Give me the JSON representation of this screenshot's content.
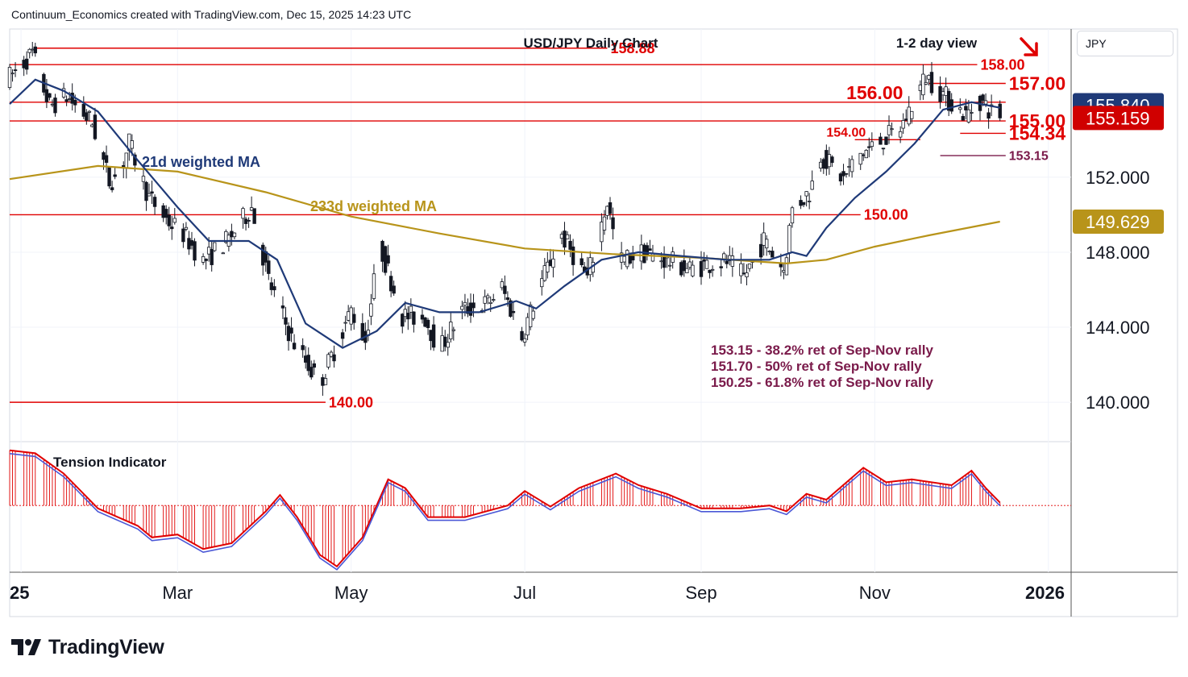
{
  "attribution": "Continuum_Economics created with TradingView.com, Dec 15, 2025 14:23 UTC",
  "brand": "TradingView",
  "currency_button": "JPY",
  "colors": {
    "candle": "#131722",
    "ma21": "#1f3a78",
    "ma233": "#b8941a",
    "level": "#e00000",
    "fib_text": "#7a1a4a",
    "price_tag_blue": "#1f3a78",
    "price_tag_red": "#d00000",
    "price_tag_gold": "#b8941a",
    "oscillator": "#e00000",
    "oscillator_signal": "#4a57d6"
  },
  "chart_data": [
    {
      "type": "candlestick",
      "title": "USD/JPY Daily Chart",
      "subtitle": "1-2 day view",
      "bias": "down",
      "x_ticks": [
        "25",
        "Mar",
        "May",
        "Jul",
        "Sep",
        "Nov",
        "2026"
      ],
      "y_ticks": [
        "140.000",
        "144.000",
        "148.000",
        "152.000"
      ],
      "ylim": [
        137.9,
        159.9
      ],
      "x_range": [
        "2025-01-01",
        "2026-01-09"
      ],
      "price_tags": [
        {
          "text": "155.840",
          "value": 155.84,
          "color": "blue"
        },
        {
          "text": "155.159",
          "value": 155.159,
          "color": "red"
        },
        {
          "text": "149.629",
          "value": 149.629,
          "color": "gold"
        }
      ],
      "levels": [
        {
          "value": 158.88,
          "label": "158.88",
          "from": "2025-01-10",
          "to": "2025-07-30",
          "size": "medium"
        },
        {
          "value": 158.0,
          "label": "158.00",
          "from": "2025-01-01",
          "to": "2025-12-07",
          "size": "medium"
        },
        {
          "value": 157.0,
          "label": "157.00",
          "from": "2025-11-20",
          "to": "2025-12-17",
          "size": "large"
        },
        {
          "value": 156.0,
          "label": "156.00",
          "from": "2025-01-01",
          "to": "2025-12-17",
          "size": "large",
          "label_at": "2025-10-22"
        },
        {
          "value": 155.0,
          "label": "155.00",
          "from": "2025-01-01",
          "to": "2025-12-17",
          "size": "large"
        },
        {
          "value": 154.34,
          "label": "154.34",
          "from": "2025-12-01",
          "to": "2025-12-17",
          "size": "large"
        },
        {
          "value": 154.0,
          "label": "154.00",
          "from": "2025-10-25",
          "to": "2025-11-17",
          "size": "small",
          "label_at": "2025-10-15"
        },
        {
          "value": 153.15,
          "label": "153.15",
          "from": "2025-11-24",
          "to": "2025-12-17",
          "size": "small",
          "color": "#7a1a4a"
        },
        {
          "value": 150.0,
          "label": "150.00",
          "from": "2025-01-01",
          "to": "2025-10-27",
          "size": "medium"
        },
        {
          "value": 140.0,
          "label": "140.00",
          "from": "2025-01-01",
          "to": "2025-04-22",
          "size": "medium"
        }
      ],
      "series_labels": [
        {
          "name": "21d weighted MA",
          "color": "ma21"
        },
        {
          "name": "233d weighted MA",
          "color": "ma233"
        }
      ],
      "annotations": [
        "153.15 - 38.2% ret of Sep-Nov rally",
        "151.70 - 50% ret of Sep-Nov rally",
        "150.25 - 61.8% ret of Sep-Nov rally"
      ],
      "price_path": [
        [
          "2025-01-01",
          157.2
        ],
        [
          "2025-01-10",
          158.6
        ],
        [
          "2025-01-16",
          155.8
        ],
        [
          "2025-01-22",
          156.3
        ],
        [
          "2025-01-31",
          154.9
        ],
        [
          "2025-02-06",
          151.8
        ],
        [
          "2025-02-10",
          152.3
        ],
        [
          "2025-02-13",
          153.8
        ],
        [
          "2025-02-20",
          150.9
        ],
        [
          "2025-02-27",
          149.6
        ],
        [
          "2025-03-04",
          149.0
        ],
        [
          "2025-03-11",
          147.5
        ],
        [
          "2025-03-20",
          148.7
        ],
        [
          "2025-03-28",
          150.4
        ],
        [
          "2025-04-03",
          146.5
        ],
        [
          "2025-04-11",
          143.4
        ],
        [
          "2025-04-21",
          141.0
        ],
        [
          "2025-04-28",
          143.5
        ],
        [
          "2025-05-02",
          144.9
        ],
        [
          "2025-05-07",
          143.3
        ],
        [
          "2025-05-12",
          148.4
        ],
        [
          "2025-05-20",
          144.6
        ],
        [
          "2025-05-28",
          144.5
        ],
        [
          "2025-06-02",
          142.8
        ],
        [
          "2025-06-10",
          144.9
        ],
        [
          "2025-06-19",
          145.3
        ],
        [
          "2025-06-24",
          146.1
        ],
        [
          "2025-07-01",
          143.5
        ],
        [
          "2025-07-08",
          146.5
        ],
        [
          "2025-07-15",
          148.9
        ],
        [
          "2025-07-24",
          146.6
        ],
        [
          "2025-07-31",
          150.7
        ],
        [
          "2025-08-04",
          147.5
        ],
        [
          "2025-08-12",
          148.0
        ],
        [
          "2025-08-20",
          147.6
        ],
        [
          "2025-08-29",
          147.1
        ],
        [
          "2025-09-05",
          147.4
        ],
        [
          "2025-09-11",
          147.5
        ],
        [
          "2025-09-17",
          146.7
        ],
        [
          "2025-09-24",
          148.6
        ],
        [
          "2025-10-01",
          147.1
        ],
        [
          "2025-10-04",
          150.3
        ],
        [
          "2025-10-10",
          151.2
        ],
        [
          "2025-10-14",
          153.2
        ],
        [
          "2025-10-22",
          151.9
        ],
        [
          "2025-10-27",
          153.1
        ],
        [
          "2025-11-04",
          153.9
        ],
        [
          "2025-11-11",
          154.6
        ],
        [
          "2025-11-20",
          157.4
        ],
        [
          "2025-11-28",
          156.1
        ],
        [
          "2025-12-04",
          155.3
        ],
        [
          "2025-12-09",
          156.1
        ],
        [
          "2025-12-15",
          155.159
        ]
      ],
      "ma21_path": [
        [
          "2025-01-01",
          155.9
        ],
        [
          "2025-01-10",
          157.2
        ],
        [
          "2025-01-20",
          156.6
        ],
        [
          "2025-02-01",
          155.5
        ],
        [
          "2025-02-15",
          152.9
        ],
        [
          "2025-03-01",
          150.4
        ],
        [
          "2025-03-12",
          148.6
        ],
        [
          "2025-03-26",
          148.6
        ],
        [
          "2025-04-05",
          147.6
        ],
        [
          "2025-04-15",
          144.2
        ],
        [
          "2025-04-28",
          142.9
        ],
        [
          "2025-05-10",
          143.8
        ],
        [
          "2025-05-20",
          145.3
        ],
        [
          "2025-06-01",
          144.8
        ],
        [
          "2025-06-15",
          144.8
        ],
        [
          "2025-06-28",
          145.4
        ],
        [
          "2025-07-05",
          145.0
        ],
        [
          "2025-07-15",
          146.2
        ],
        [
          "2025-07-28",
          147.6
        ],
        [
          "2025-08-10",
          148.0
        ],
        [
          "2025-08-25",
          147.8
        ],
        [
          "2025-09-10",
          147.6
        ],
        [
          "2025-09-25",
          147.6
        ],
        [
          "2025-10-03",
          148.0
        ],
        [
          "2025-10-08",
          147.8
        ],
        [
          "2025-10-15",
          149.3
        ],
        [
          "2025-10-25",
          150.9
        ],
        [
          "2025-11-05",
          152.3
        ],
        [
          "2025-11-15",
          153.8
        ],
        [
          "2025-11-25",
          155.6
        ],
        [
          "2025-12-05",
          156.0
        ],
        [
          "2025-12-15",
          155.7
        ]
      ],
      "ma233_path": [
        [
          "2025-01-01",
          151.9
        ],
        [
          "2025-02-01",
          152.6
        ],
        [
          "2025-03-01",
          152.3
        ],
        [
          "2025-04-01",
          151.2
        ],
        [
          "2025-05-01",
          149.9
        ],
        [
          "2025-06-01",
          149.0
        ],
        [
          "2025-07-01",
          148.2
        ],
        [
          "2025-08-01",
          147.9
        ],
        [
          "2025-09-01",
          147.7
        ],
        [
          "2025-10-01",
          147.4
        ],
        [
          "2025-10-15",
          147.6
        ],
        [
          "2025-11-01",
          148.3
        ],
        [
          "2025-11-20",
          148.9
        ],
        [
          "2025-12-15",
          149.63
        ]
      ]
    },
    {
      "type": "area",
      "title": "Tension Indicator",
      "ylim": [
        -1.15,
        1.1
      ],
      "zero_line": 0,
      "series": [
        {
          "name": "",
          "values": [
            [
              "2025-01-01",
              0.95
            ],
            [
              "2025-01-10",
              0.9
            ],
            [
              "2025-01-20",
              0.55
            ],
            [
              "2025-02-01",
              -0.05
            ],
            [
              "2025-02-15",
              -0.35
            ],
            [
              "2025-02-20",
              -0.55
            ],
            [
              "2025-03-01",
              -0.5
            ],
            [
              "2025-03-10",
              -0.75
            ],
            [
              "2025-03-20",
              -0.65
            ],
            [
              "2025-04-01",
              -0.1
            ],
            [
              "2025-04-06",
              0.18
            ],
            [
              "2025-04-12",
              -0.2
            ],
            [
              "2025-04-20",
              -0.85
            ],
            [
              "2025-04-26",
              -1.05
            ],
            [
              "2025-05-05",
              -0.55
            ],
            [
              "2025-05-14",
              0.45
            ],
            [
              "2025-05-20",
              0.3
            ],
            [
              "2025-05-28",
              -0.2
            ],
            [
              "2025-06-10",
              -0.2
            ],
            [
              "2025-06-25",
              0.0
            ],
            [
              "2025-07-01",
              0.25
            ],
            [
              "2025-07-10",
              -0.02
            ],
            [
              "2025-07-20",
              0.3
            ],
            [
              "2025-08-02",
              0.55
            ],
            [
              "2025-08-10",
              0.35
            ],
            [
              "2025-08-20",
              0.2
            ],
            [
              "2025-09-01",
              -0.05
            ],
            [
              "2025-09-15",
              -0.05
            ],
            [
              "2025-09-25",
              0.0
            ],
            [
              "2025-10-01",
              -0.1
            ],
            [
              "2025-10-08",
              0.2
            ],
            [
              "2025-10-15",
              0.1
            ],
            [
              "2025-10-28",
              0.65
            ],
            [
              "2025-11-05",
              0.4
            ],
            [
              "2025-11-14",
              0.45
            ],
            [
              "2025-11-28",
              0.35
            ],
            [
              "2025-12-05",
              0.6
            ],
            [
              "2025-12-10",
              0.3
            ],
            [
              "2025-12-15",
              0.05
            ]
          ]
        }
      ]
    }
  ]
}
